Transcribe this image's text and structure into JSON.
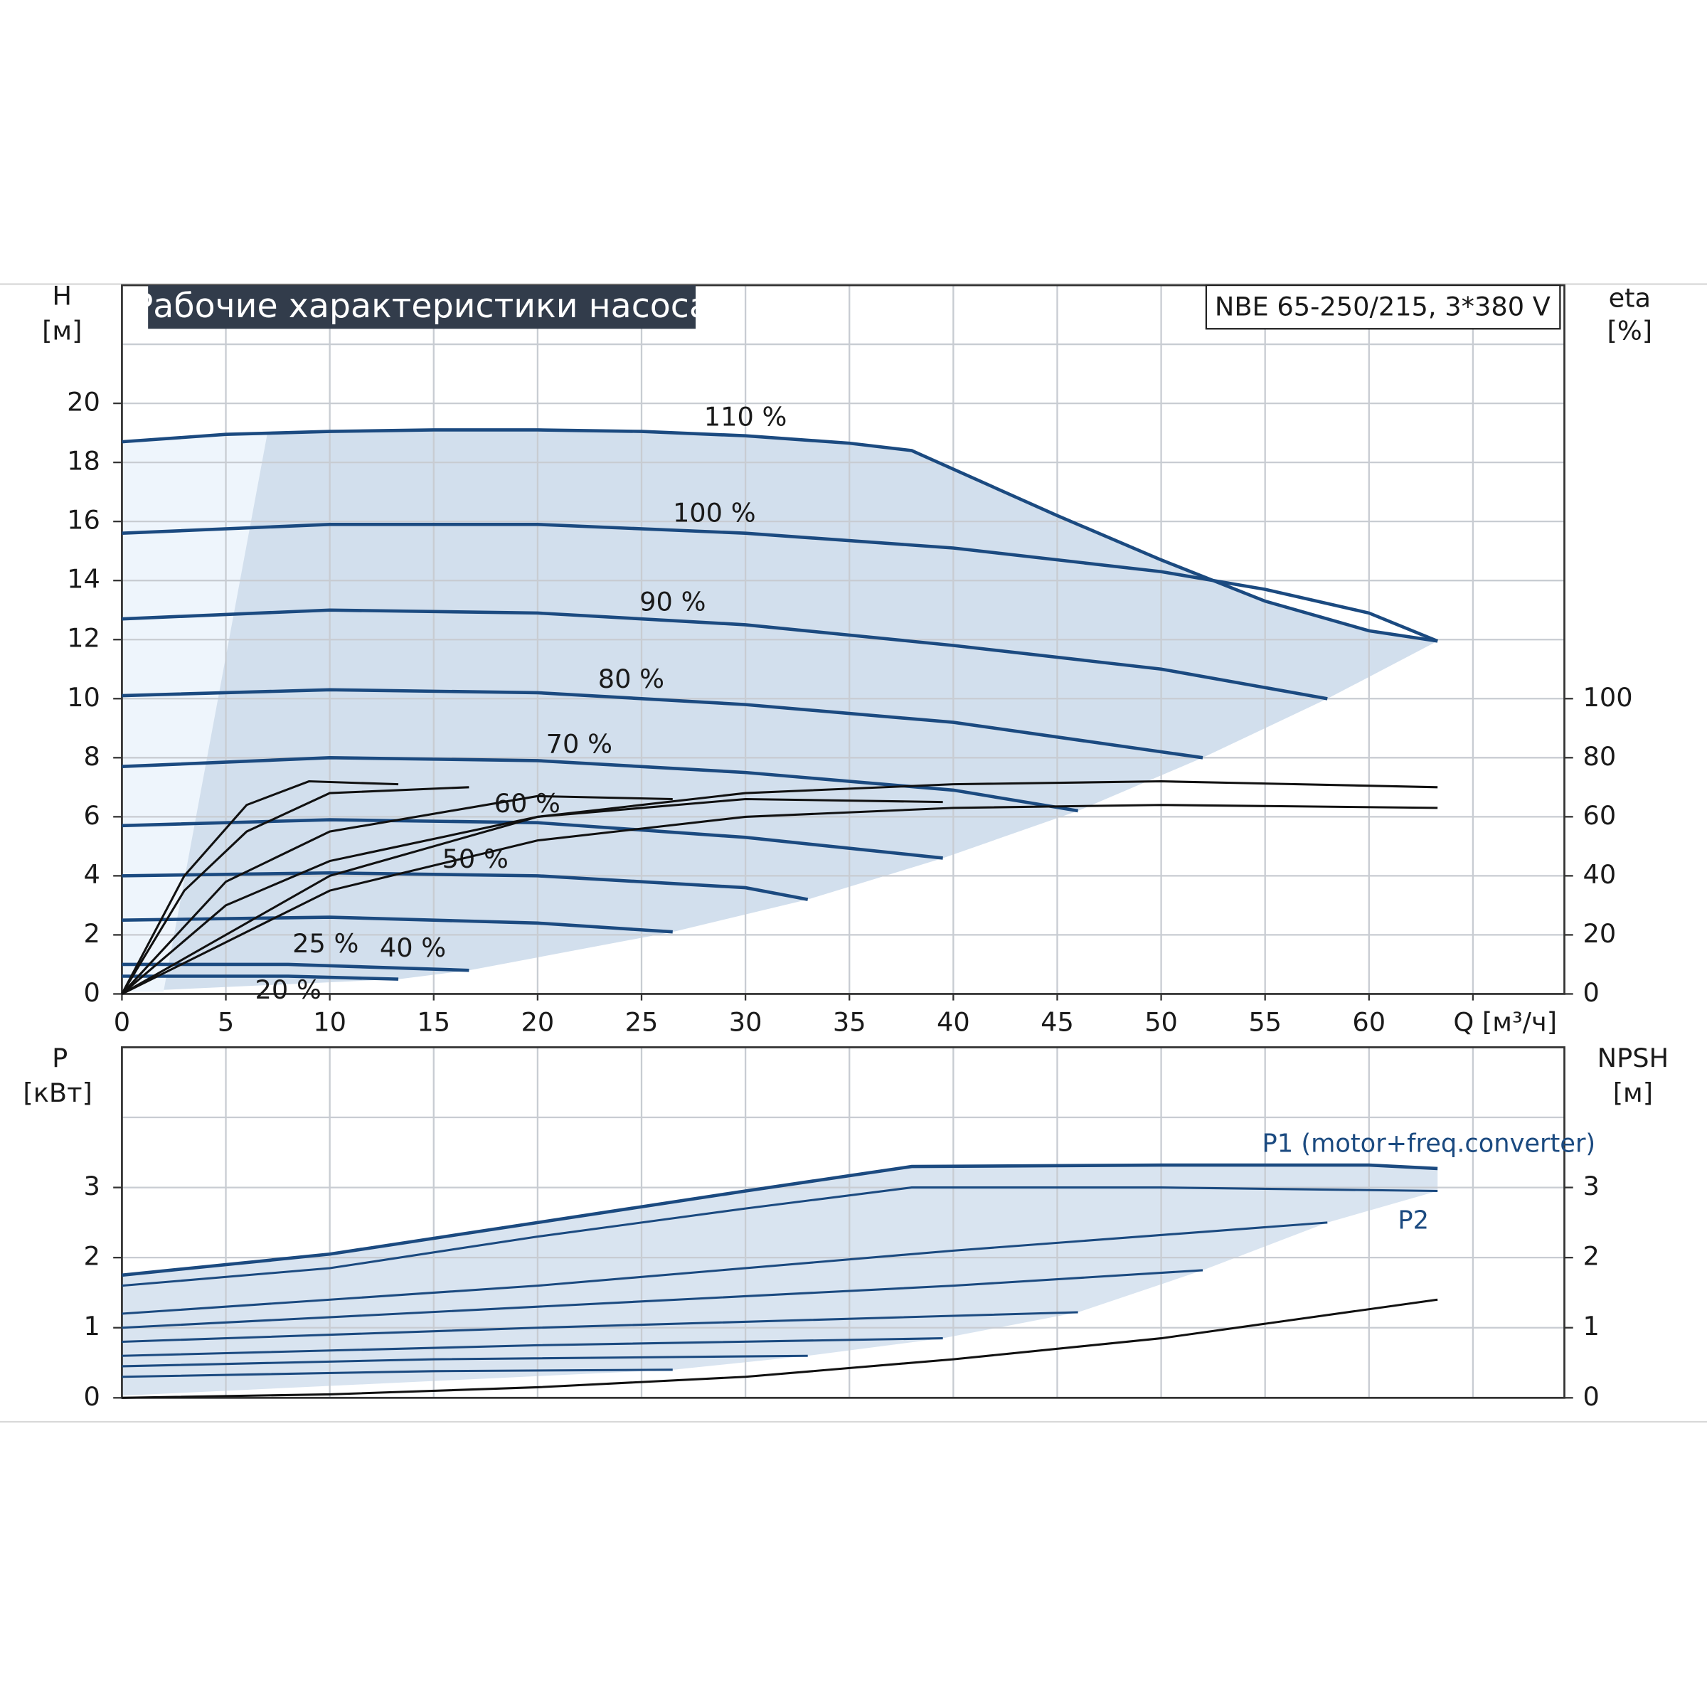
{
  "chart_data": [
    {
      "type": "line",
      "title": "Рабочие характеристики насоса",
      "model": "NBE 65-250/215, 3*380 V",
      "y_label": "H",
      "y_unit": "[м]",
      "y2_label": "eta",
      "y2_unit": "[%]",
      "xlim": [
        0,
        69.4
      ],
      "ylim": [
        0,
        24
      ],
      "y2lim": [
        0,
        240
      ],
      "xticks": [
        0,
        5,
        10,
        15,
        20,
        25,
        30,
        35,
        40,
        45,
        50,
        55,
        60,
        {
          "value": 65,
          "label": "Q [м³/ч]"
        }
      ],
      "yticks": [
        0,
        2,
        4,
        6,
        8,
        10,
        12,
        14,
        16,
        18,
        20
      ],
      "y2ticks": [
        0,
        20,
        40,
        60,
        80,
        100
      ],
      "xgrid": [
        5,
        10,
        15,
        20,
        25,
        30,
        35,
        40,
        45,
        50,
        55,
        60,
        65
      ],
      "ygrid": [
        2,
        4,
        6,
        8,
        10,
        12,
        14,
        16,
        18,
        20,
        22
      ],
      "series": [
        {
          "name": "110 %",
          "color": "#1b4a80",
          "x": [
            0,
            5,
            10,
            15,
            20,
            25,
            30,
            35,
            38,
            45,
            50,
            55,
            60,
            63.3
          ],
          "values": [
            18.7,
            18.95,
            19.05,
            19.1,
            19.1,
            19.05,
            18.9,
            18.65,
            18.4,
            16.2,
            14.7,
            13.3,
            12.3,
            11.95
          ]
        },
        {
          "name": "100 %",
          "color": "#1b4a80",
          "x": [
            0,
            10,
            20,
            30,
            40,
            50,
            55,
            60,
            63.3
          ],
          "values": [
            15.6,
            15.9,
            15.9,
            15.6,
            15.1,
            14.3,
            13.7,
            12.9,
            11.95
          ]
        },
        {
          "name": "90 %",
          "color": "#1b4a80",
          "x": [
            0,
            10,
            20,
            30,
            40,
            50,
            58
          ],
          "values": [
            12.7,
            13.0,
            12.9,
            12.5,
            11.8,
            11.0,
            10.0
          ]
        },
        {
          "name": "80 %",
          "color": "#1b4a80",
          "x": [
            0,
            10,
            20,
            30,
            40,
            52
          ],
          "values": [
            10.1,
            10.3,
            10.2,
            9.8,
            9.2,
            8.0
          ]
        },
        {
          "name": "70 %",
          "color": "#1b4a80",
          "x": [
            0,
            10,
            20,
            30,
            40,
            46
          ],
          "values": [
            7.7,
            8.0,
            7.9,
            7.5,
            6.9,
            6.2
          ]
        },
        {
          "name": "60 %",
          "color": "#1b4a80",
          "x": [
            0,
            10,
            20,
            30,
            39.5
          ],
          "values": [
            5.7,
            5.9,
            5.8,
            5.3,
            4.6
          ]
        },
        {
          "name": "50 %",
          "color": "#1b4a80",
          "x": [
            0,
            10,
            20,
            30,
            33
          ],
          "values": [
            4.0,
            4.1,
            4.0,
            3.6,
            3.2
          ]
        },
        {
          "name": "40 %",
          "color": "#1b4a80",
          "x": [
            0,
            10,
            20,
            26.5
          ],
          "values": [
            2.5,
            2.6,
            2.4,
            2.1
          ]
        },
        {
          "name": "25 %",
          "color": "#1b4a80",
          "x": [
            0,
            8,
            16.7
          ],
          "values": [
            1.0,
            1.0,
            0.8
          ]
        },
        {
          "name": "20 %",
          "color": "#1b4a80",
          "x": [
            0,
            8,
            13.3
          ],
          "values": [
            0.6,
            0.6,
            0.5
          ]
        },
        {
          "color": "#111111",
          "axis": "y2",
          "x": [
            0,
            10,
            20,
            30,
            40,
            50,
            63.3
          ],
          "values": [
            0,
            40,
            60,
            68,
            71,
            72,
            70
          ]
        },
        {
          "color": "#111111",
          "axis": "y2",
          "x": [
            0,
            10,
            20,
            30,
            40,
            50,
            63.3
          ],
          "values": [
            0,
            35,
            52,
            60,
            63,
            64,
            63
          ]
        },
        {
          "color": "#111111",
          "axis": "y2",
          "x": [
            0,
            5,
            10,
            20,
            30,
            39.5
          ],
          "values": [
            0,
            30,
            45,
            60,
            66,
            65
          ]
        },
        {
          "color": "#111111",
          "axis": "y2",
          "x": [
            0,
            5,
            10,
            20,
            26.5
          ],
          "values": [
            0,
            38,
            55,
            67,
            66
          ]
        },
        {
          "color": "#111111",
          "axis": "y2",
          "x": [
            0,
            3,
            6,
            10,
            16.7
          ],
          "values": [
            0,
            35,
            55,
            68,
            70
          ]
        },
        {
          "color": "#111111",
          "axis": "y2",
          "x": [
            0,
            3,
            6,
            9,
            13.3
          ],
          "values": [
            0,
            40,
            64,
            72,
            71
          ]
        }
      ]
    },
    {
      "type": "line",
      "y_label": "P",
      "y_unit": "[кВт]",
      "y2_label": "NPSH",
      "y2_unit": "[м]",
      "xlim": [
        0,
        69.4
      ],
      "ylim": [
        0,
        5
      ],
      "y2lim": [
        0,
        5
      ],
      "yticks": [
        0,
        1,
        2,
        3
      ],
      "y2ticks": [
        0,
        1,
        2,
        3
      ],
      "xgrid": [
        5,
        10,
        15,
        20,
        25,
        30,
        35,
        40,
        45,
        50,
        55,
        60,
        65
      ],
      "ygrid": [
        1,
        2,
        3,
        4
      ],
      "series": [
        {
          "name": "P1 (motor+freq.converter)",
          "color": "#1b4a80",
          "x": [
            0,
            10,
            20,
            30,
            38,
            50,
            60,
            63.3
          ],
          "values": [
            1.75,
            2.05,
            2.5,
            2.95,
            3.3,
            3.32,
            3.32,
            3.27
          ]
        },
        {
          "name": "P2",
          "color": "#1b4a80",
          "x": [
            0,
            10,
            20,
            30,
            38,
            50,
            63.3
          ],
          "values": [
            1.6,
            1.85,
            2.3,
            2.7,
            3.0,
            3.0,
            2.95
          ]
        },
        {
          "color": "#1b4a80",
          "x": [
            0,
            20,
            40,
            58
          ],
          "values": [
            1.2,
            1.6,
            2.1,
            2.5
          ]
        },
        {
          "color": "#1b4a80",
          "x": [
            0,
            20,
            40,
            52
          ],
          "values": [
            1.0,
            1.3,
            1.6,
            1.82
          ]
        },
        {
          "color": "#1b4a80",
          "x": [
            0,
            20,
            46
          ],
          "values": [
            0.8,
            1.0,
            1.22
          ]
        },
        {
          "color": "#1b4a80",
          "x": [
            0,
            20,
            39.5
          ],
          "values": [
            0.6,
            0.75,
            0.85
          ]
        },
        {
          "color": "#1b4a80",
          "x": [
            0,
            15,
            33
          ],
          "values": [
            0.45,
            0.55,
            0.6
          ]
        },
        {
          "color": "#1b4a80",
          "x": [
            0,
            15,
            26.5
          ],
          "values": [
            0.3,
            0.38,
            0.4
          ]
        },
        {
          "color": "#111111",
          "axis": "y2",
          "x": [
            0,
            10,
            20,
            30,
            40,
            50,
            63.3
          ],
          "values": [
            0,
            0.05,
            0.15,
            0.3,
            0.55,
            0.85,
            1.4
          ]
        }
      ]
    }
  ]
}
